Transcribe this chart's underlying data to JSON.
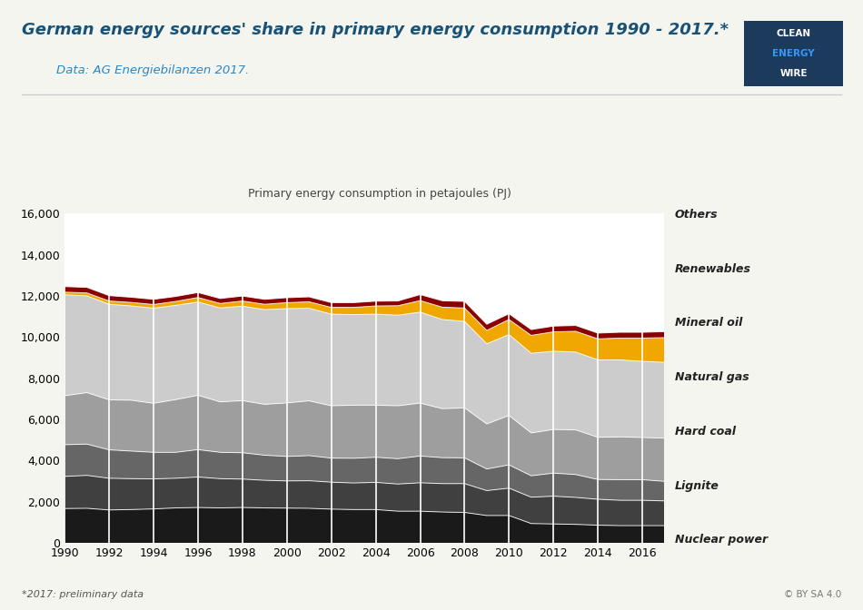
{
  "title": "German energy sources' share in primary energy consumption 1990 - 2017.*",
  "subtitle": "Data: AG Energiebilanzen 2017.",
  "ylabel": "Primary energy consumption in petajoules (PJ)",
  "footnote": "*2017: preliminary data",
  "background_color": "#f5f5f0",
  "plot_bg_color": "#ffffff",
  "title_color": "#1a5276",
  "subtitle_color": "#2e86c1",
  "years": [
    1990,
    1991,
    1992,
    1993,
    1994,
    1995,
    1996,
    1997,
    1998,
    1999,
    2000,
    2001,
    2002,
    2003,
    2004,
    2005,
    2006,
    2007,
    2008,
    2009,
    2010,
    2011,
    2012,
    2013,
    2014,
    2015,
    2016,
    2017
  ],
  "series": {
    "Nuclear power": [
      1670,
      1680,
      1600,
      1620,
      1650,
      1700,
      1720,
      1700,
      1720,
      1700,
      1690,
      1680,
      1640,
      1620,
      1620,
      1540,
      1540,
      1500,
      1480,
      1330,
      1330,
      940,
      920,
      900,
      860,
      840,
      840,
      840
    ],
    "Lignite": [
      1560,
      1600,
      1540,
      1500,
      1460,
      1440,
      1480,
      1420,
      1380,
      1340,
      1320,
      1340,
      1310,
      1290,
      1320,
      1320,
      1380,
      1380,
      1400,
      1210,
      1330,
      1280,
      1350,
      1310,
      1260,
      1230,
      1230,
      1200
    ],
    "Hard coal": [
      1540,
      1520,
      1380,
      1340,
      1290,
      1260,
      1330,
      1280,
      1280,
      1220,
      1190,
      1220,
      1170,
      1200,
      1220,
      1230,
      1300,
      1260,
      1250,
      1050,
      1130,
      1040,
      1120,
      1110,
      960,
      1000,
      1000,
      950
    ],
    "Natural gas": [
      2380,
      2500,
      2430,
      2470,
      2380,
      2560,
      2640,
      2450,
      2530,
      2470,
      2600,
      2660,
      2540,
      2580,
      2530,
      2570,
      2570,
      2380,
      2430,
      2190,
      2400,
      2080,
      2120,
      2170,
      2050,
      2080,
      2050,
      2100
    ],
    "Mineral oil": [
      4900,
      4700,
      4640,
      4580,
      4620,
      4580,
      4530,
      4560,
      4590,
      4600,
      4580,
      4500,
      4450,
      4400,
      4420,
      4400,
      4420,
      4330,
      4200,
      3890,
      3930,
      3870,
      3800,
      3780,
      3760,
      3740,
      3700,
      3680
    ],
    "Renewables": [
      130,
      140,
      160,
      170,
      180,
      190,
      220,
      220,
      250,
      260,
      290,
      310,
      330,
      350,
      400,
      460,
      560,
      600,
      650,
      650,
      730,
      870,
      940,
      1010,
      1020,
      1060,
      1130,
      1200
    ],
    "Others": [
      270,
      270,
      260,
      250,
      250,
      240,
      240,
      240,
      240,
      240,
      240,
      240,
      230,
      230,
      230,
      230,
      290,
      310,
      320,
      300,
      280,
      280,
      280,
      280,
      280,
      280,
      280,
      290
    ]
  },
  "colors": {
    "Nuclear power": "#1a1a1a",
    "Lignite": "#404040",
    "Hard coal": "#666666",
    "Natural gas": "#9e9e9e",
    "Mineral oil": "#cccccc",
    "Renewables": "#f0a800",
    "Others": "#8b0000"
  },
  "ylim": [
    0,
    16000
  ],
  "yticks": [
    0,
    2000,
    4000,
    6000,
    8000,
    10000,
    12000,
    14000,
    16000
  ],
  "legend_labels_order": [
    "Others",
    "Renewables",
    "Mineral oil",
    "Natural gas",
    "Hard coal",
    "Lignite",
    "Nuclear power"
  ]
}
